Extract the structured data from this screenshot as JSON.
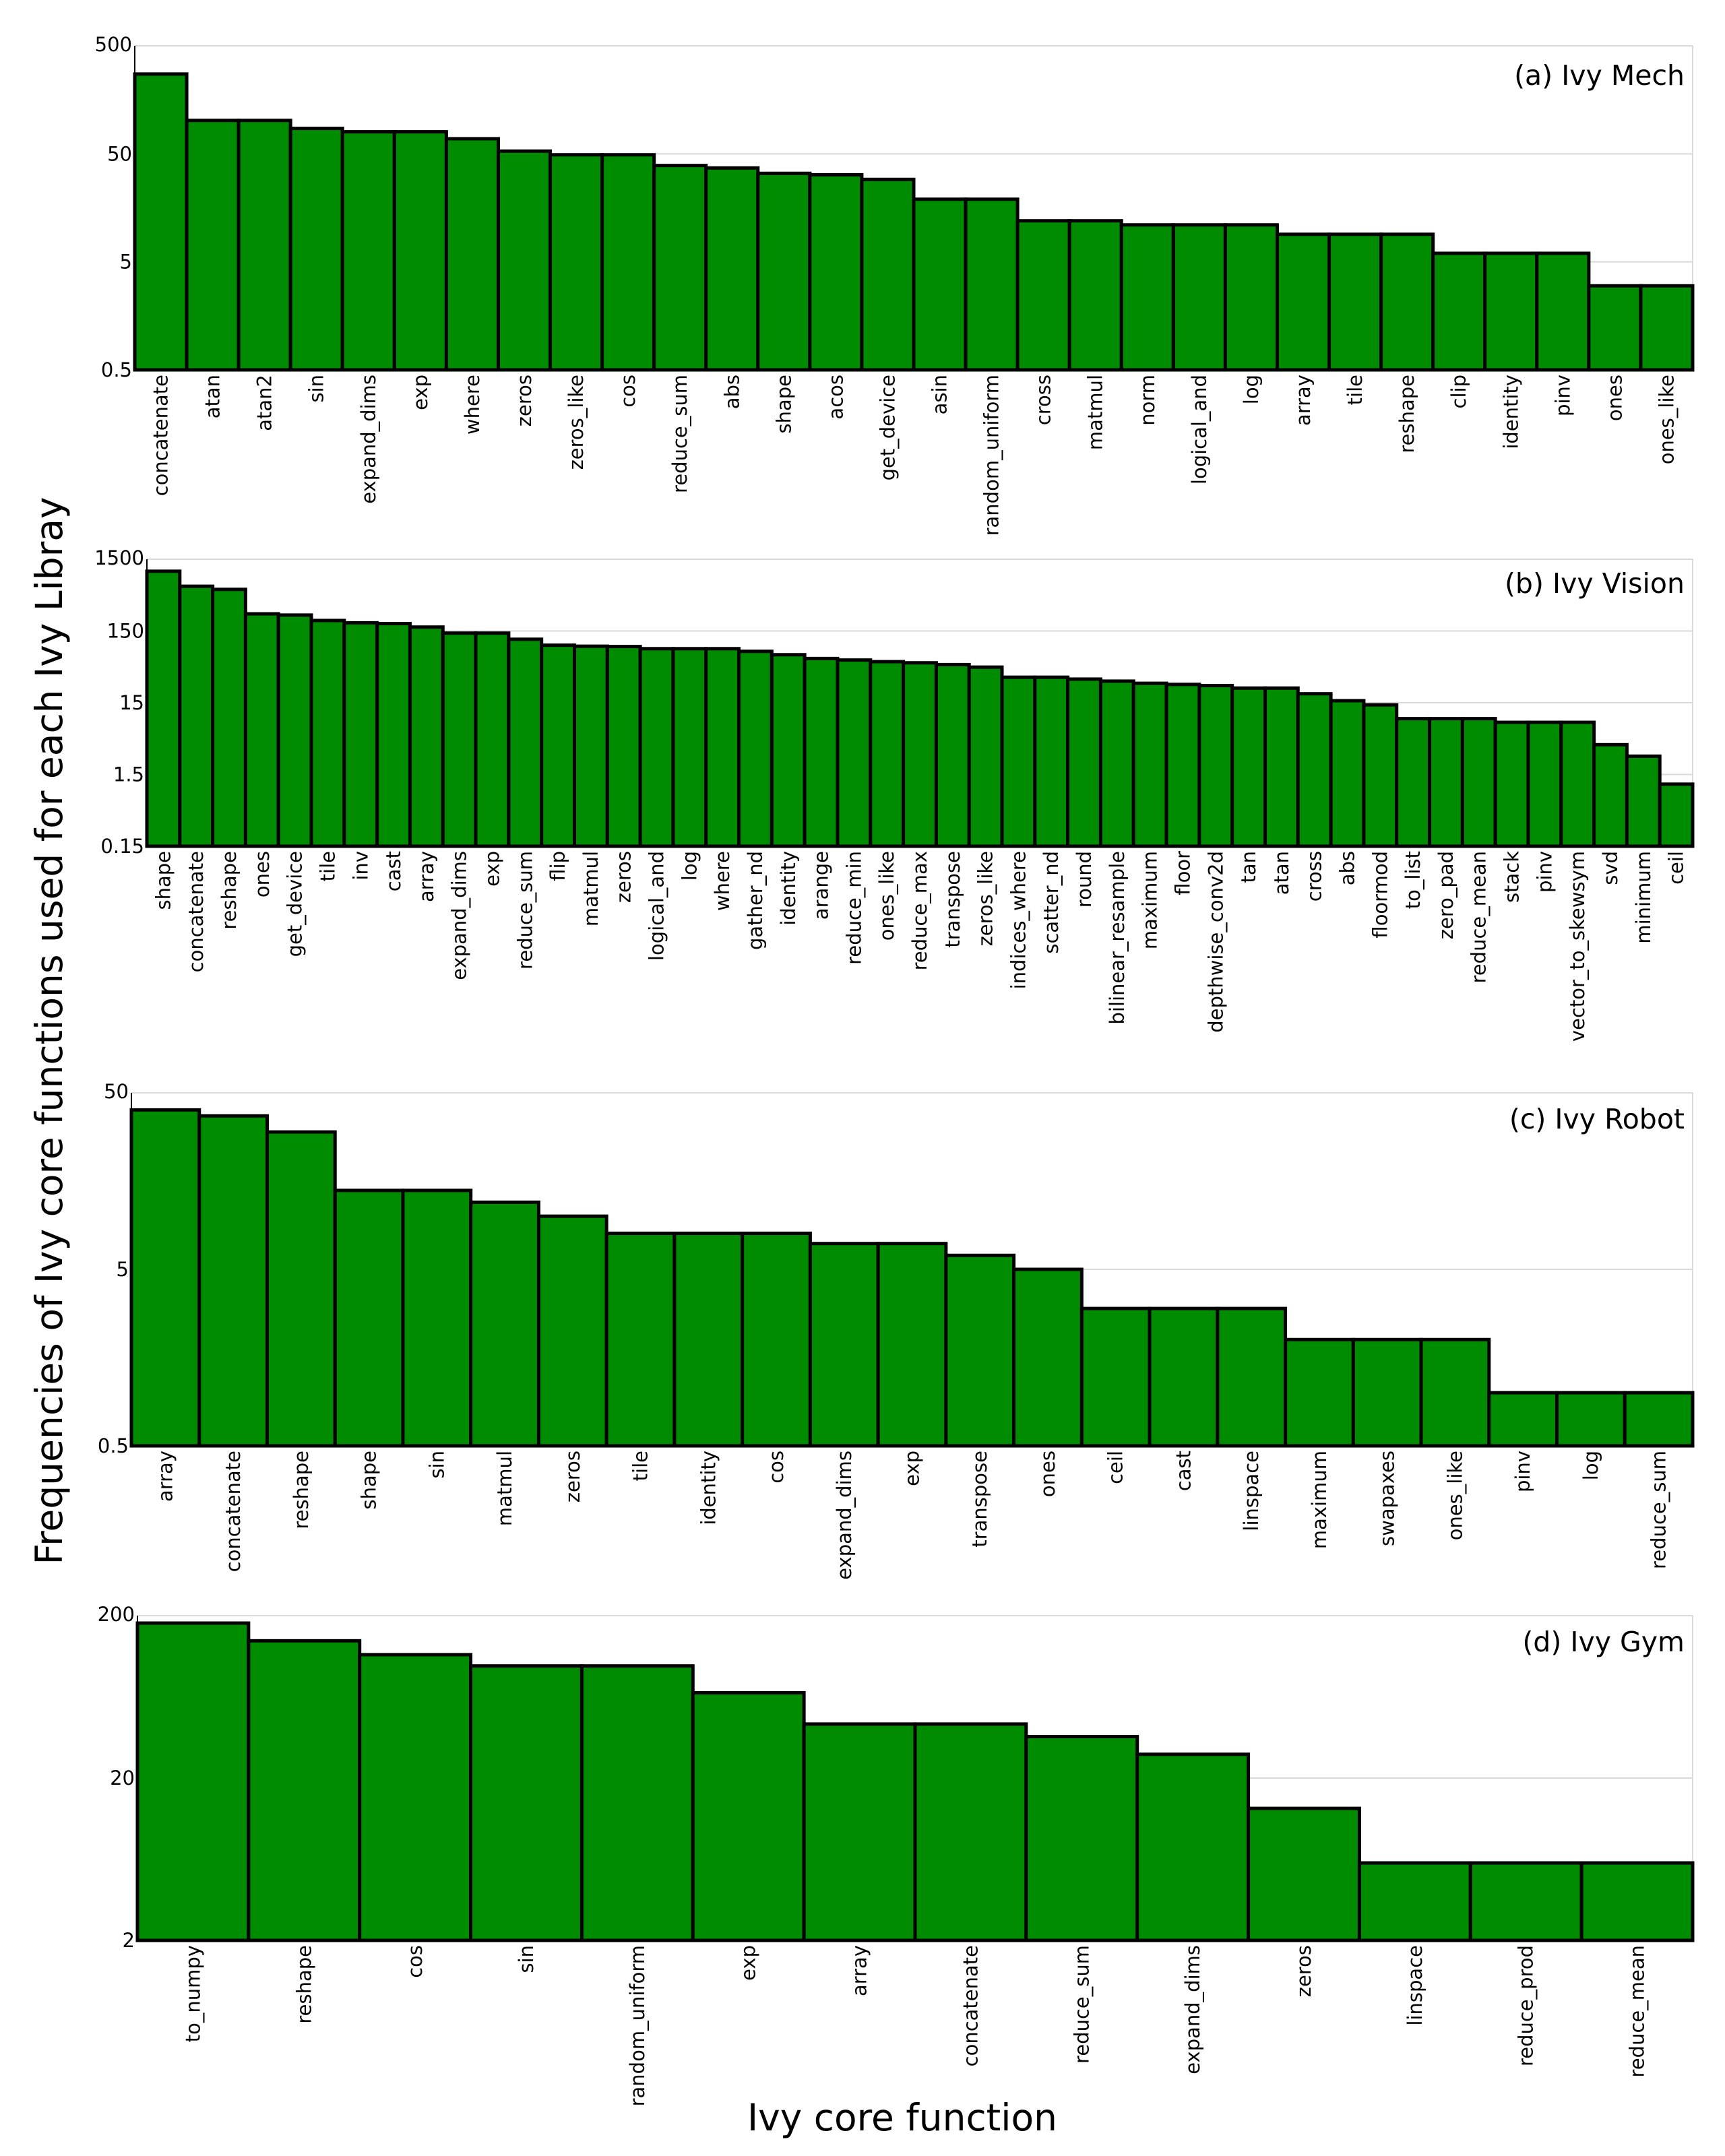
{
  "figure": {
    "ylabel": "Frequencies of Ivy core functions used for each Ivy Libray",
    "xlabel": "Ivy core function"
  },
  "colors": {
    "bar": "#008c00",
    "edge": "#000000",
    "grid": "#d9d9d9"
  },
  "chart_data": [
    {
      "type": "bar",
      "title": "(a) Ivy Mech",
      "scale": "log",
      "ylim": [
        0.5,
        500
      ],
      "yticks": [
        0.5,
        5,
        50,
        500
      ],
      "ytick_labels": [
        "0.5",
        "5",
        "50",
        "500"
      ],
      "categories": [
        "concatenate",
        "atan",
        "atan2",
        "sin",
        "expand_dims",
        "exp",
        "where",
        "zeros",
        "zeros_like",
        "cos",
        "reduce_sum",
        "abs",
        "shape",
        "acos",
        "get_device",
        "asin",
        "random_uniform",
        "cross",
        "matmul",
        "norm",
        "logical_and",
        "log",
        "array",
        "tile",
        "reshape",
        "clip",
        "identity",
        "pinv",
        "ones",
        "ones_like"
      ],
      "values": [
        274,
        102,
        102,
        86,
        80,
        80,
        69,
        53,
        49,
        49,
        39,
        37,
        33,
        32,
        29,
        19,
        19,
        12,
        12,
        11,
        11,
        11,
        9,
        9,
        9,
        6,
        6,
        6,
        3,
        3
      ]
    },
    {
      "type": "bar",
      "title": "(b) Ivy Vision",
      "scale": "log",
      "ylim": [
        0.15,
        1500
      ],
      "yticks": [
        0.15,
        1.5,
        15,
        150,
        1500
      ],
      "ytick_labels": [
        "0.15",
        "1.5",
        "15",
        "150",
        "1500"
      ],
      "categories": [
        "shape",
        "concatenate",
        "reshape",
        "ones",
        "get_device",
        "tile",
        "inv",
        "cast",
        "array",
        "expand_dims",
        "exp",
        "reduce_sum",
        "flip",
        "matmul",
        "zeros",
        "logical_and",
        "log",
        "where",
        "gather_nd",
        "identity",
        "arange",
        "reduce_min",
        "ones_like",
        "reduce_max",
        "transpose",
        "zeros_like",
        "indices_where",
        "scatter_nd",
        "round",
        "bilinear_resample",
        "maximum",
        "floor",
        "depthwise_conv2d",
        "tan",
        "atan",
        "cross",
        "abs",
        "floormod",
        "to_list",
        "zero_pad",
        "reduce_mean",
        "stack",
        "pinv",
        "vector_to_skewsym",
        "svd",
        "minimum",
        "ceil"
      ],
      "values": [
        1020,
        630,
        570,
        260,
        250,
        210,
        195,
        190,
        170,
        140,
        140,
        115,
        95,
        92,
        91,
        85,
        85,
        85,
        78,
        70,
        62,
        59,
        56,
        54,
        51,
        47,
        34,
        34,
        32,
        30,
        28,
        27,
        26,
        24,
        24,
        20,
        16,
        14,
        9,
        9,
        9,
        8,
        8,
        8,
        3.9,
        2.7,
        1.1
      ]
    },
    {
      "type": "bar",
      "title": "(c) Ivy Robot",
      "scale": "log",
      "ylim": [
        0.5,
        50
      ],
      "yticks": [
        0.5,
        5,
        50
      ],
      "ytick_labels": [
        "0.5",
        "5",
        "50"
      ],
      "categories": [
        "array",
        "concatenate",
        "reshape",
        "shape",
        "sin",
        "matmul",
        "zeros",
        "tile",
        "identity",
        "cos",
        "expand_dims",
        "exp",
        "transpose",
        "ones",
        "ceil",
        "cast",
        "linspace",
        "maximum",
        "swapaxes",
        "ones_like",
        "pinv",
        "log",
        "reduce_sum"
      ],
      "values": [
        40,
        37,
        30,
        14,
        14,
        12,
        10,
        8,
        8,
        8,
        7,
        7,
        6,
        5,
        3,
        3,
        3,
        2,
        2,
        2,
        1,
        1,
        1
      ]
    },
    {
      "type": "bar",
      "title": "(d) Ivy Gym",
      "scale": "log",
      "ylim": [
        2,
        200
      ],
      "yticks": [
        2,
        20,
        200
      ],
      "ytick_labels": [
        "2",
        "20",
        "200"
      ],
      "categories": [
        "to_numpy",
        "reshape",
        "cos",
        "sin",
        "random_uniform",
        "exp",
        "array",
        "concatenate",
        "reduce_sum",
        "expand_dims",
        "zeros",
        "linspace",
        "reduce_prod",
        "reduce_mean"
      ],
      "values": [
        180,
        140,
        115,
        98,
        98,
        67,
        43,
        43,
        36,
        28,
        13,
        6,
        6,
        6
      ]
    }
  ]
}
